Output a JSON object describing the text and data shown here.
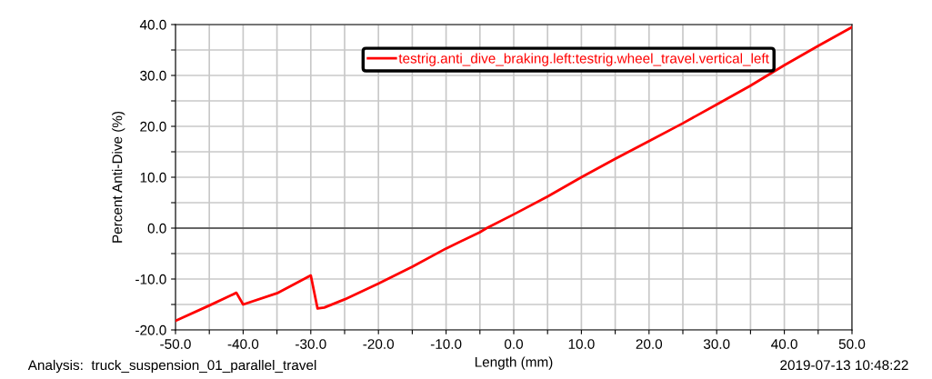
{
  "chart_data": {
    "type": "line",
    "xlabel": "Length (mm)",
    "ylabel": "Percent Anti-Dive (%)",
    "x": [
      -50,
      -45,
      -41,
      -40,
      -35,
      -30,
      -29,
      -28,
      -25,
      -20,
      -15,
      -10,
      -5,
      -4,
      0,
      5,
      10,
      15,
      20,
      25,
      30,
      35,
      40,
      45,
      50
    ],
    "series": [
      {
        "name": "testrig.anti_dive_braking.left:testrig.wheel_travel.vertical_left",
        "color": "#ff0000",
        "values": [
          -18.2,
          -15.2,
          -12.7,
          -15.0,
          -12.8,
          -9.3,
          -15.8,
          -15.6,
          -14.0,
          -10.9,
          -7.6,
          -4.0,
          -0.8,
          0.0,
          2.7,
          6.2,
          10.0,
          13.6,
          17.1,
          20.6,
          24.3,
          28.0,
          32.0,
          35.8,
          39.5
        ]
      }
    ],
    "xlim": [
      -50,
      50
    ],
    "ylim": [
      -20,
      40
    ],
    "xticks": [
      {
        "value": -50,
        "label": "-50.0"
      },
      {
        "value": -45,
        "label": null
      },
      {
        "value": -40,
        "label": "-40.0"
      },
      {
        "value": -35,
        "label": null
      },
      {
        "value": -30,
        "label": "-30.0"
      },
      {
        "value": -25,
        "label": null
      },
      {
        "value": -20,
        "label": "-20.0"
      },
      {
        "value": -15,
        "label": null
      },
      {
        "value": -10,
        "label": "-10.0"
      },
      {
        "value": -5,
        "label": null
      },
      {
        "value": 0,
        "label": "0.0"
      },
      {
        "value": 5,
        "label": null
      },
      {
        "value": 10,
        "label": "10.0"
      },
      {
        "value": 15,
        "label": null
      },
      {
        "value": 20,
        "label": "20.0"
      },
      {
        "value": 25,
        "label": null
      },
      {
        "value": 30,
        "label": "30.0"
      },
      {
        "value": 35,
        "label": null
      },
      {
        "value": 40,
        "label": "40.0"
      },
      {
        "value": 45,
        "label": null
      },
      {
        "value": 50,
        "label": "50.0"
      }
    ],
    "yticks": [
      {
        "value": -20,
        "label": "-20.0"
      },
      {
        "value": -15,
        "label": null
      },
      {
        "value": -10,
        "label": "-10.0"
      },
      {
        "value": -5,
        "label": null
      },
      {
        "value": 0,
        "label": "0.0"
      },
      {
        "value": 5,
        "label": null
      },
      {
        "value": 10,
        "label": "10.0"
      },
      {
        "value": 15,
        "label": null
      },
      {
        "value": 20,
        "label": "20.0"
      },
      {
        "value": 25,
        "label": null
      },
      {
        "value": 30,
        "label": "30.0"
      },
      {
        "value": 35,
        "label": null
      },
      {
        "value": 40,
        "label": "40.0"
      }
    ],
    "ref_lines": [
      {
        "axis": "y",
        "value": 0,
        "color": "#404040"
      }
    ],
    "grid": true,
    "legend": "top right",
    "marker": "none",
    "line_style": "solid",
    "annotations": [
      "Analysis:  truck_suspension_01_parallel_travel",
      "2019-07-13 10:48:22"
    ]
  }
}
